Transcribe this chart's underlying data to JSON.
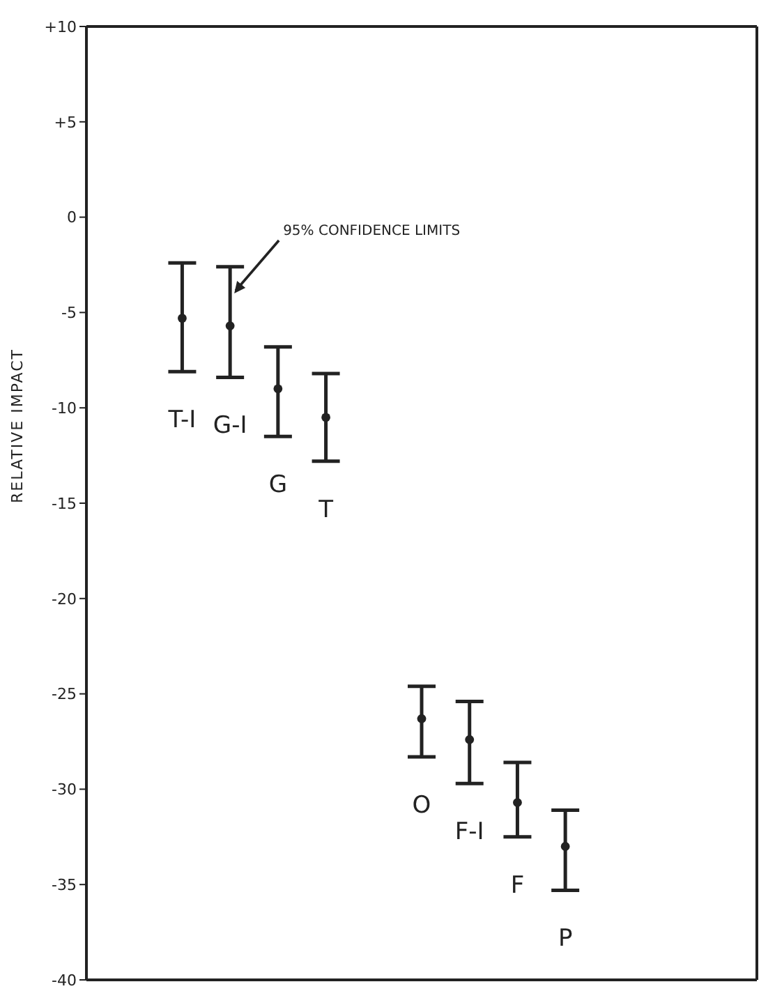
{
  "chart_data": {
    "type": "scatter",
    "ylabel": "RELATIVE IMPACT",
    "categories": [
      "T-I",
      "G-I",
      "G",
      "T",
      null,
      "O",
      "F-I",
      "F",
      "P"
    ],
    "values": [
      -5.3,
      -5.7,
      -9.0,
      -10.5,
      null,
      -26.3,
      -27.4,
      -30.7,
      -33.0
    ],
    "errors": [
      [
        -8.1,
        -2.4
      ],
      [
        -8.4,
        -2.6
      ],
      [
        -11.5,
        -6.8
      ],
      [
        -12.8,
        -8.2
      ],
      null,
      [
        -28.3,
        -24.6
      ],
      [
        -29.7,
        -25.4
      ],
      [
        -32.5,
        -28.6
      ],
      [
        -35.3,
        -31.1
      ]
    ],
    "color": "#222222",
    "marker": "circle",
    "tick_labels": "y",
    "ylim": [
      -40,
      10
    ],
    "yticks": [
      {
        "value": 10,
        "label": "+10"
      },
      {
        "value": 5,
        "label": "+5"
      },
      0,
      -5,
      -10,
      -15,
      -20,
      -25,
      -30,
      -35,
      -40
    ],
    "annotations": [
      {
        "text": "95% CONFIDENCE LIMITS",
        "x": "G-I",
        "y": -4
      }
    ]
  }
}
